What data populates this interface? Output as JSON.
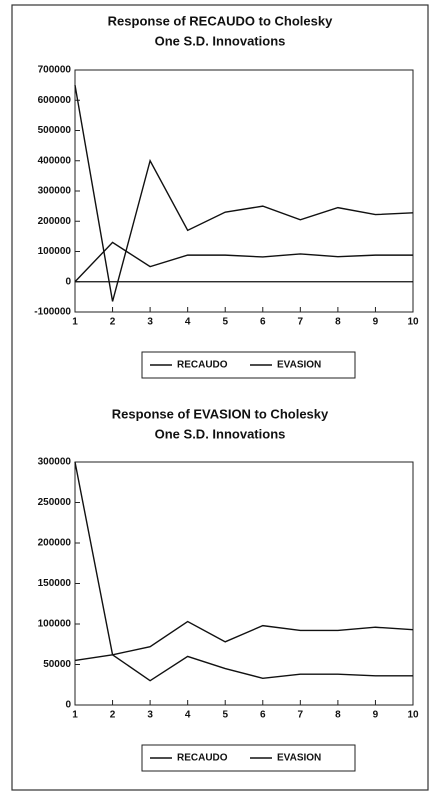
{
  "chart_data": [
    {
      "type": "line",
      "title": "Response of RECAUDO to Cholesky",
      "subtitle": "One S.D. Innovations",
      "x": [
        1,
        2,
        3,
        4,
        5,
        6,
        7,
        8,
        9,
        10
      ],
      "series": [
        {
          "name": "RECAUDO",
          "color": "#111111",
          "values": [
            650000,
            -65000,
            400000,
            170000,
            230000,
            250000,
            205000,
            245000,
            222000,
            228000
          ]
        },
        {
          "name": "EVASION",
          "color": "#111111",
          "values": [
            0,
            130000,
            50000,
            88000,
            88000,
            82000,
            92000,
            83000,
            88000,
            88000
          ]
        }
      ],
      "xlim": [
        1,
        10
      ],
      "xticks": [
        1,
        2,
        3,
        4,
        5,
        6,
        7,
        8,
        9,
        10
      ],
      "ylim": [
        -100000,
        700000
      ],
      "yticks": [
        -100000,
        0,
        100000,
        200000,
        300000,
        400000,
        500000,
        600000,
        700000
      ],
      "zero_line": true,
      "legend": "bottom"
    },
    {
      "type": "line",
      "title": "Response of EVASION to Cholesky",
      "subtitle": "One S.D. Innovations",
      "x": [
        1,
        2,
        3,
        4,
        5,
        6,
        7,
        8,
        9,
        10
      ],
      "series": [
        {
          "name": "RECAUDO",
          "color": "#111111",
          "values": [
            55000,
            62000,
            72000,
            103000,
            78000,
            98000,
            92000,
            92000,
            96000,
            93000
          ]
        },
        {
          "name": "EVASION",
          "color": "#111111",
          "values": [
            300000,
            62000,
            30000,
            60000,
            45000,
            33000,
            38000,
            38000,
            36000,
            36000
          ]
        }
      ],
      "xlim": [
        1,
        10
      ],
      "xticks": [
        1,
        2,
        3,
        4,
        5,
        6,
        7,
        8,
        9,
        10
      ],
      "ylim": [
        0,
        300000
      ],
      "yticks": [
        0,
        50000,
        100000,
        150000,
        200000,
        250000,
        300000
      ],
      "zero_line": false,
      "legend": "bottom"
    }
  ]
}
